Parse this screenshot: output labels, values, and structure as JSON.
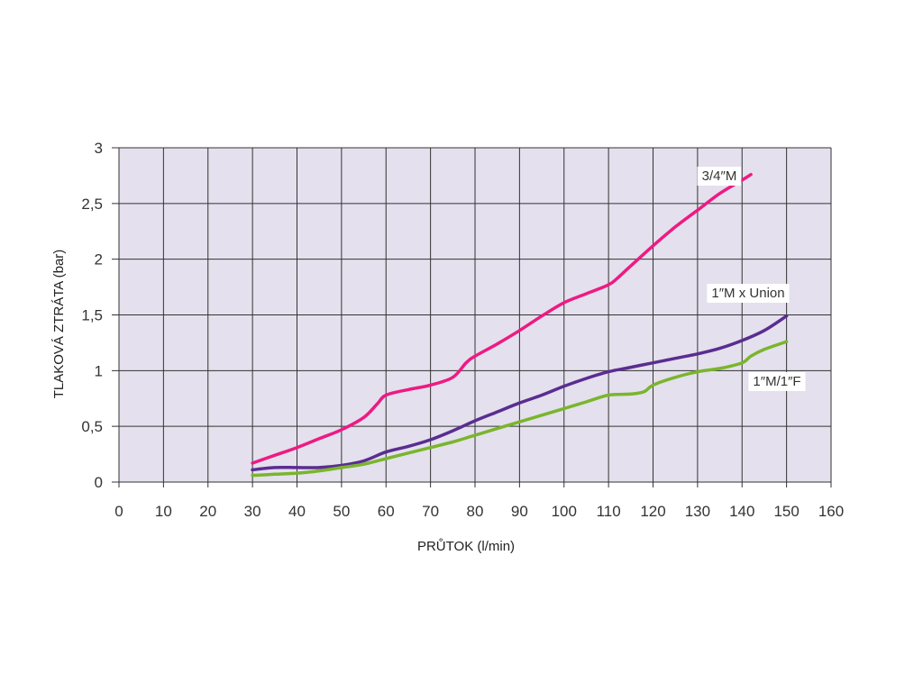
{
  "chart_data": {
    "type": "line",
    "title": "",
    "xlabel": "PRŮTOK (l/min)",
    "ylabel": "TLAKOVÁ ZTRÁTA (bar)",
    "xlim": [
      0,
      160
    ],
    "ylim": [
      0,
      3
    ],
    "x_ticks": [
      0,
      10,
      20,
      30,
      40,
      50,
      60,
      70,
      80,
      90,
      100,
      110,
      120,
      130,
      140,
      150,
      160
    ],
    "x_tick_labels": [
      "0",
      "10",
      "20",
      "30",
      "40",
      "50",
      "60",
      "70",
      "80",
      "90",
      "100",
      "110",
      "120",
      "130",
      "140",
      "150",
      "160"
    ],
    "y_ticks": [
      0,
      0.5,
      1,
      1.5,
      2,
      2.5,
      3
    ],
    "y_tick_labels": [
      "0",
      "0,5",
      "1",
      "1,5",
      "2",
      "2,5",
      "3"
    ],
    "grid": true,
    "plot_background": "#e4e0ed",
    "grid_color": "#333333",
    "series": [
      {
        "name": "3/4″M",
        "color": "#ee1a83",
        "x": [
          30,
          35,
          40,
          45,
          50,
          55,
          58,
          60,
          65,
          70,
          75,
          78,
          80,
          85,
          90,
          95,
          100,
          105,
          110,
          112,
          115,
          120,
          125,
          130,
          135,
          140,
          142
        ],
        "y": [
          0.17,
          0.24,
          0.31,
          0.39,
          0.47,
          0.58,
          0.7,
          0.78,
          0.83,
          0.87,
          0.94,
          1.07,
          1.13,
          1.24,
          1.36,
          1.49,
          1.61,
          1.69,
          1.77,
          1.83,
          1.94,
          2.12,
          2.29,
          2.44,
          2.59,
          2.71,
          2.76
        ]
      },
      {
        "name": "1″M x Union",
        "color": "#5a2d91",
        "x": [
          30,
          35,
          40,
          45,
          50,
          55,
          60,
          65,
          70,
          75,
          80,
          85,
          90,
          95,
          100,
          105,
          110,
          115,
          120,
          125,
          130,
          135,
          140,
          145,
          150
        ],
        "y": [
          0.11,
          0.13,
          0.13,
          0.13,
          0.15,
          0.19,
          0.27,
          0.32,
          0.38,
          0.46,
          0.55,
          0.63,
          0.71,
          0.78,
          0.86,
          0.93,
          0.99,
          1.03,
          1.07,
          1.11,
          1.15,
          1.2,
          1.27,
          1.36,
          1.49
        ]
      },
      {
        "name": "1″M/1″F",
        "color": "#7ab52c",
        "x": [
          30,
          35,
          40,
          45,
          50,
          55,
          60,
          65,
          70,
          75,
          80,
          85,
          90,
          95,
          100,
          105,
          110,
          115,
          118,
          120,
          125,
          130,
          135,
          140,
          142,
          145,
          150
        ],
        "y": [
          0.06,
          0.07,
          0.08,
          0.1,
          0.13,
          0.16,
          0.21,
          0.26,
          0.31,
          0.36,
          0.42,
          0.48,
          0.54,
          0.6,
          0.66,
          0.72,
          0.78,
          0.79,
          0.81,
          0.87,
          0.94,
          0.99,
          1.02,
          1.07,
          1.13,
          1.19,
          1.26
        ]
      }
    ],
    "labels": [
      {
        "series": 0,
        "text": "3/4″M"
      },
      {
        "series": 1,
        "text": "1″M x Union"
      },
      {
        "series": 2,
        "text": "1″M/1″F"
      }
    ]
  }
}
